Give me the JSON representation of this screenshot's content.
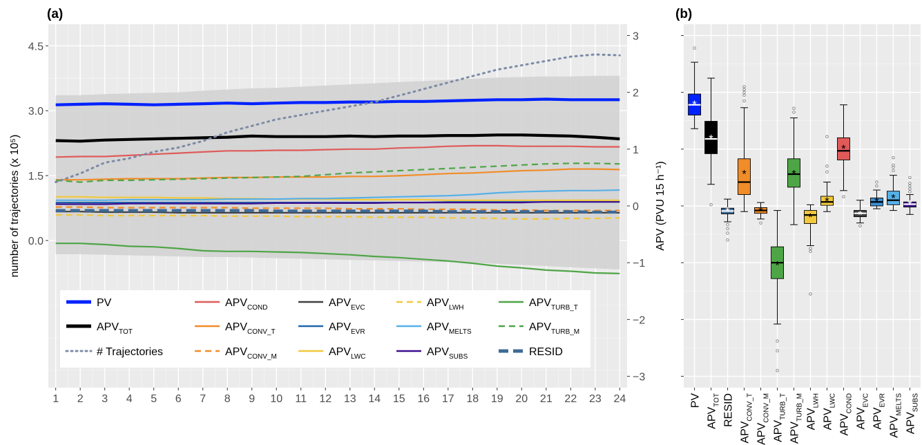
{
  "chart_data": [
    {
      "panel": "(a)",
      "type": "line",
      "xlabel": "",
      "ylabel_left": "number of trajectories (x 10⁵)",
      "ylabel_right": "APV (PVU 15 h⁻¹)",
      "x_ticks": [
        "1",
        "2",
        "3",
        "4",
        "5",
        "6",
        "7",
        "8",
        "9",
        "10",
        "11",
        "12",
        "13",
        "14",
        "15",
        "16",
        "17",
        "18",
        "19",
        "20",
        "21",
        "22",
        "23",
        "24"
      ],
      "xlim": [
        0.7,
        24.3
      ],
      "ylim_left": [
        -3.4,
        5.0
      ],
      "y_ticks_left": [
        "0.0",
        "1.5",
        "3.0",
        "4.5"
      ],
      "ylim_right": [
        -3.2,
        3.2
      ],
      "y_ticks_right": [
        "-3",
        "-2",
        "-1",
        "0",
        "1",
        "2",
        "3"
      ],
      "grid": true,
      "legend_position": "bottom",
      "colors": {
        "PV": "#0022ff",
        "APV_TOT": "#000000",
        "TRAJ": "#7d8ba6",
        "COND": "#e05a5a",
        "CONV_T": "#f28c28",
        "CONV_M": "#f28c28",
        "EVC": "#404040",
        "EVR": "#2166ac",
        "LWC": "#f2c83c",
        "LWH": "#f2c83c",
        "MELTS": "#56b0e8",
        "SUBS": "#3b0f8f",
        "TURB_T": "#4ea546",
        "TURB_M": "#4ea546",
        "RESID": "#3e6a96",
        "band": "#d3d3d3"
      },
      "legend": [
        {
          "key": "PV",
          "main": "PV",
          "sub": ""
        },
        {
          "key": "APV_TOT",
          "main": "APV",
          "sub": "TOT"
        },
        {
          "key": "TRAJ",
          "main": "# Trajectories",
          "sub": ""
        },
        {
          "key": "COND",
          "main": "APV",
          "sub": "COND"
        },
        {
          "key": "CONV_T",
          "main": "APV",
          "sub": "CONV_T"
        },
        {
          "key": "CONV_M",
          "main": "APV",
          "sub": "CONV_M"
        },
        {
          "key": "EVC",
          "main": "APV",
          "sub": "EVC"
        },
        {
          "key": "EVR",
          "main": "APV",
          "sub": "EVR"
        },
        {
          "key": "LWC",
          "main": "APV",
          "sub": "LWC"
        },
        {
          "key": "LWH",
          "main": "APV",
          "sub": "LWH"
        },
        {
          "key": "MELTS",
          "main": "APV",
          "sub": "MELTS"
        },
        {
          "key": "SUBS",
          "main": "APV",
          "sub": "SUBS"
        },
        {
          "key": "TURB_T",
          "main": "APV",
          "sub": "TURB_T"
        },
        {
          "key": "TURB_M",
          "main": "APV",
          "sub": "TURB_M"
        },
        {
          "key": "RESID",
          "main": "RESID",
          "sub": ""
        }
      ],
      "band_apv": {
        "upper": [
          1.95,
          1.95,
          1.97,
          1.98,
          1.99,
          2.0,
          2.03,
          2.05,
          2.07,
          2.08,
          2.1,
          2.12,
          2.14,
          2.16,
          2.18,
          2.2,
          2.22,
          2.24,
          2.26,
          2.27,
          2.28,
          2.28,
          2.29,
          2.29
        ],
        "lower": [
          -0.85,
          -0.85,
          -0.86,
          -0.87,
          -0.88,
          -0.89,
          -0.9,
          -0.9,
          -0.91,
          -0.92,
          -0.93,
          -0.94,
          -0.95,
          -0.96,
          -0.97,
          -0.98,
          -0.99,
          -1.0,
          -1.02,
          -1.04,
          -1.06,
          -1.08,
          -1.1,
          -1.12
        ]
      },
      "series_left": [
        {
          "key": "TRAJ",
          "style": "dotted",
          "values": [
            1.35,
            1.55,
            1.8,
            1.9,
            2.05,
            2.15,
            2.3,
            2.5,
            2.65,
            2.8,
            2.9,
            3.0,
            3.1,
            3.2,
            3.35,
            3.5,
            3.65,
            3.8,
            3.95,
            4.05,
            4.15,
            4.25,
            4.3,
            4.28
          ]
        }
      ],
      "series_right": [
        {
          "key": "PV",
          "style": "solid",
          "width": 4.2,
          "values": [
            1.78,
            1.79,
            1.8,
            1.79,
            1.78,
            1.79,
            1.8,
            1.81,
            1.8,
            1.81,
            1.82,
            1.82,
            1.83,
            1.83,
            1.84,
            1.84,
            1.85,
            1.86,
            1.87,
            1.87,
            1.88,
            1.87,
            1.87,
            1.87
          ]
        },
        {
          "key": "APV_TOT",
          "style": "solid",
          "width": 4.2,
          "values": [
            1.15,
            1.14,
            1.16,
            1.17,
            1.18,
            1.19,
            1.2,
            1.21,
            1.23,
            1.22,
            1.22,
            1.22,
            1.23,
            1.22,
            1.23,
            1.23,
            1.24,
            1.24,
            1.25,
            1.25,
            1.24,
            1.23,
            1.21,
            1.18
          ]
        },
        {
          "key": "COND",
          "style": "solid",
          "width": 2.2,
          "values": [
            0.86,
            0.87,
            0.87,
            0.89,
            0.91,
            0.93,
            0.95,
            0.97,
            0.97,
            0.98,
            0.98,
            0.99,
            1.0,
            1.0,
            1.02,
            1.03,
            1.05,
            1.06,
            1.06,
            1.05,
            1.05,
            1.05,
            1.04,
            1.04
          ]
        },
        {
          "key": "CONV_T",
          "style": "solid",
          "width": 2.2,
          "values": [
            0.46,
            0.46,
            0.47,
            0.48,
            0.48,
            0.48,
            0.49,
            0.5,
            0.5,
            0.51,
            0.51,
            0.51,
            0.52,
            0.52,
            0.53,
            0.55,
            0.57,
            0.58,
            0.6,
            0.62,
            0.63,
            0.65,
            0.65,
            0.64
          ]
        },
        {
          "key": "CONV_M",
          "style": "dashed",
          "width": 2.2,
          "values": [
            -0.02,
            -0.02,
            -0.03,
            -0.03,
            -0.03,
            -0.03,
            -0.03,
            -0.03,
            -0.04,
            -0.04,
            -0.04,
            -0.04,
            -0.05,
            -0.05,
            -0.05,
            -0.06,
            -0.06,
            -0.06,
            -0.07,
            -0.07,
            -0.08,
            -0.08,
            -0.08,
            -0.08
          ]
        },
        {
          "key": "EVC",
          "style": "solid",
          "width": 2.2,
          "values": [
            -0.1,
            -0.1,
            -0.11,
            -0.11,
            -0.11,
            -0.12,
            -0.12,
            -0.12,
            -0.12,
            -0.12,
            -0.12,
            -0.12,
            -0.12,
            -0.12,
            -0.12,
            -0.12,
            -0.12,
            -0.12,
            -0.12,
            -0.12,
            -0.12,
            -0.12,
            -0.12,
            -0.12
          ]
        },
        {
          "key": "EVR",
          "style": "solid",
          "width": 2.2,
          "values": [
            0.06,
            0.06,
            0.06,
            0.06,
            0.06,
            0.06,
            0.06,
            0.06,
            0.06,
            0.06,
            0.06,
            0.06,
            0.06,
            0.06,
            0.06,
            0.06,
            0.07,
            0.07,
            0.07,
            0.07,
            0.07,
            0.07,
            0.07,
            0.07
          ]
        },
        {
          "key": "LWC",
          "style": "solid",
          "width": 2.2,
          "values": [
            0.16,
            0.16,
            0.15,
            0.15,
            0.15,
            0.14,
            0.14,
            0.13,
            0.13,
            0.12,
            0.12,
            0.12,
            0.11,
            0.11,
            0.11,
            0.11,
            0.1,
            0.1,
            0.1,
            0.1,
            0.1,
            0.1,
            0.1,
            0.1
          ]
        },
        {
          "key": "LWH",
          "style": "dashed",
          "width": 2.2,
          "values": [
            -0.16,
            -0.16,
            -0.17,
            -0.17,
            -0.17,
            -0.17,
            -0.17,
            -0.18,
            -0.18,
            -0.18,
            -0.19,
            -0.19,
            -0.19,
            -0.2,
            -0.2,
            -0.2,
            -0.21,
            -0.21,
            -0.22,
            -0.23,
            -0.23,
            -0.22,
            -0.22,
            -0.21
          ]
        },
        {
          "key": "MELTS",
          "style": "solid",
          "width": 2.2,
          "values": [
            0.1,
            0.1,
            0.1,
            0.11,
            0.11,
            0.11,
            0.11,
            0.12,
            0.12,
            0.12,
            0.13,
            0.13,
            0.14,
            0.15,
            0.16,
            0.17,
            0.18,
            0.2,
            0.23,
            0.25,
            0.26,
            0.27,
            0.27,
            0.28
          ]
        },
        {
          "key": "SUBS",
          "style": "solid",
          "width": 2.2,
          "values": [
            0.03,
            0.03,
            0.03,
            0.04,
            0.04,
            0.04,
            0.04,
            0.04,
            0.04,
            0.05,
            0.05,
            0.05,
            0.05,
            0.05,
            0.06,
            0.06,
            0.06,
            0.06,
            0.06,
            0.06,
            0.07,
            0.07,
            0.07,
            0.07
          ]
        },
        {
          "key": "TURB_T",
          "style": "solid",
          "width": 2.2,
          "values": [
            -0.66,
            -0.66,
            -0.68,
            -0.71,
            -0.72,
            -0.75,
            -0.79,
            -0.8,
            -0.8,
            -0.81,
            -0.82,
            -0.84,
            -0.86,
            -0.89,
            -0.91,
            -0.94,
            -0.97,
            -1.01,
            -1.06,
            -1.09,
            -1.13,
            -1.15,
            -1.18,
            -1.19
          ]
        },
        {
          "key": "TURB_M",
          "style": "dashed",
          "width": 2.2,
          "values": [
            0.45,
            0.42,
            0.45,
            0.45,
            0.46,
            0.47,
            0.48,
            0.49,
            0.5,
            0.51,
            0.52,
            0.55,
            0.58,
            0.6,
            0.62,
            0.64,
            0.66,
            0.68,
            0.7,
            0.72,
            0.74,
            0.75,
            0.75,
            0.74
          ]
        },
        {
          "key": "RESID",
          "style": "thickdash",
          "width": 4.2,
          "values": [
            -0.08,
            -0.08,
            -0.08,
            -0.08,
            -0.08,
            -0.08,
            -0.08,
            -0.08,
            -0.08,
            -0.09,
            -0.09,
            -0.09,
            -0.09,
            -0.09,
            -0.09,
            -0.09,
            -0.1,
            -0.1,
            -0.1,
            -0.1,
            -0.1,
            -0.1,
            -0.11,
            -0.11
          ]
        }
      ]
    },
    {
      "panel": "(b)",
      "type": "box",
      "ylim": [
        -3.2,
        3.2
      ],
      "y_ticks": [
        "-3",
        "-2",
        "-1",
        "0",
        "1",
        "2",
        "3"
      ],
      "grid": true,
      "boxes": [
        {
          "key": "PV",
          "main": "PV",
          "sub": "",
          "color": "#0022ff",
          "q1": 1.6,
          "median": 1.78,
          "q3": 1.97,
          "wlo": 1.36,
          "whi": 2.53,
          "mean": 1.8,
          "outliers": [
            2.78
          ],
          "dark": true
        },
        {
          "key": "APV_TOT",
          "main": "APV",
          "sub": "TOT",
          "color": "#000000",
          "q1": 0.92,
          "median": 1.18,
          "q3": 1.49,
          "wlo": 0.38,
          "whi": 2.25,
          "mean": 1.2,
          "outliers": [
            0.02
          ],
          "dark": true
        },
        {
          "key": "RESID",
          "main": "RESID",
          "sub": "",
          "color": "#3e6a96",
          "q1": -0.14,
          "median": -0.09,
          "q3": -0.04,
          "wlo": -0.28,
          "whi": 0.12,
          "mean": -0.08,
          "outliers": [
            -0.33,
            -0.4,
            -0.48,
            -0.6
          ],
          "dark": true
        },
        {
          "key": "CONV_T",
          "main": "APV",
          "sub": "CONV_T",
          "color": "#f28c28",
          "q1": 0.2,
          "median": 0.42,
          "q3": 0.83,
          "wlo": -0.1,
          "whi": 1.73,
          "mean": 0.58,
          "outliers": [
            1.85,
            1.95,
            2.0,
            2.05,
            2.1
          ],
          "dark": false
        },
        {
          "key": "CONV_M",
          "main": "APV",
          "sub": "CONV_M",
          "color": "#f28c28",
          "q1": -0.13,
          "median": -0.08,
          "q3": -0.03,
          "wlo": -0.23,
          "whi": 0.06,
          "mean": -0.08,
          "outliers": [
            -0.3
          ],
          "dark": false
        },
        {
          "key": "TURB_T",
          "main": "APV",
          "sub": "TURB_T",
          "color": "#4ea546",
          "q1": -1.28,
          "median": -1.0,
          "q3": -0.72,
          "wlo": -2.08,
          "whi": -0.08,
          "mean": -1.03,
          "outliers": [
            -2.38,
            -2.55,
            -2.9
          ],
          "dark": false
        },
        {
          "key": "TURB_M",
          "main": "APV",
          "sub": "TURB_M",
          "color": "#4ea546",
          "q1": 0.33,
          "median": 0.56,
          "q3": 0.83,
          "wlo": -0.33,
          "whi": 1.55,
          "mean": 0.58,
          "outliers": [
            1.65,
            1.72
          ],
          "dark": false
        },
        {
          "key": "LWH",
          "main": "APV",
          "sub": "LWH",
          "color": "#f2c83c",
          "q1": -0.31,
          "median": -0.16,
          "q3": -0.08,
          "wlo": -0.7,
          "whi": 0.02,
          "mean": -0.18,
          "outliers": [
            -0.75,
            -0.8,
            -1.55
          ],
          "dark": false
        },
        {
          "key": "LWC",
          "main": "APV",
          "sub": "LWC",
          "color": "#f2c83c",
          "q1": 0.01,
          "median": 0.07,
          "q3": 0.17,
          "wlo": -0.1,
          "whi": 0.42,
          "mean": 0.1,
          "outliers": [
            0.6,
            0.7,
            1.22
          ],
          "dark": false
        },
        {
          "key": "COND",
          "main": "APV",
          "sub": "COND",
          "color": "#e05a5a",
          "q1": 0.81,
          "median": 0.97,
          "q3": 1.2,
          "wlo": 0.27,
          "whi": 1.78,
          "mean": 1.02,
          "outliers": [
            0.16
          ],
          "dark": false
        },
        {
          "key": "EVC",
          "main": "APV",
          "sub": "EVC",
          "color": "#404040",
          "q1": -0.19,
          "median": -0.13,
          "q3": -0.08,
          "wlo": -0.3,
          "whi": 0.1,
          "mean": -0.14,
          "outliers": [
            -0.35
          ],
          "dark": true
        },
        {
          "key": "EVR",
          "main": "APV",
          "sub": "EVR",
          "color": "#3a8fd6",
          "q1": 0.0,
          "median": 0.07,
          "q3": 0.14,
          "wlo": -0.05,
          "whi": 0.28,
          "mean": 0.09,
          "outliers": [
            0.35,
            0.42
          ],
          "dark": false
        },
        {
          "key": "MELTS",
          "main": "APV",
          "sub": "MELTS",
          "color": "#56b0e8",
          "q1": 0.02,
          "median": 0.1,
          "q3": 0.26,
          "wlo": -0.08,
          "whi": 0.54,
          "mean": 0.15,
          "outliers": [
            0.62,
            0.68,
            0.72,
            0.85
          ],
          "dark": false
        },
        {
          "key": "SUBS",
          "main": "APV",
          "sub": "SUBS",
          "color": "#3b0f8f",
          "q1": -0.02,
          "median": 0.03,
          "q3": 0.07,
          "wlo": -0.15,
          "whi": 0.2,
          "mean": 0.04,
          "outliers": [
            0.25,
            0.3,
            0.35,
            0.4,
            0.5
          ],
          "dark": true
        }
      ]
    }
  ]
}
